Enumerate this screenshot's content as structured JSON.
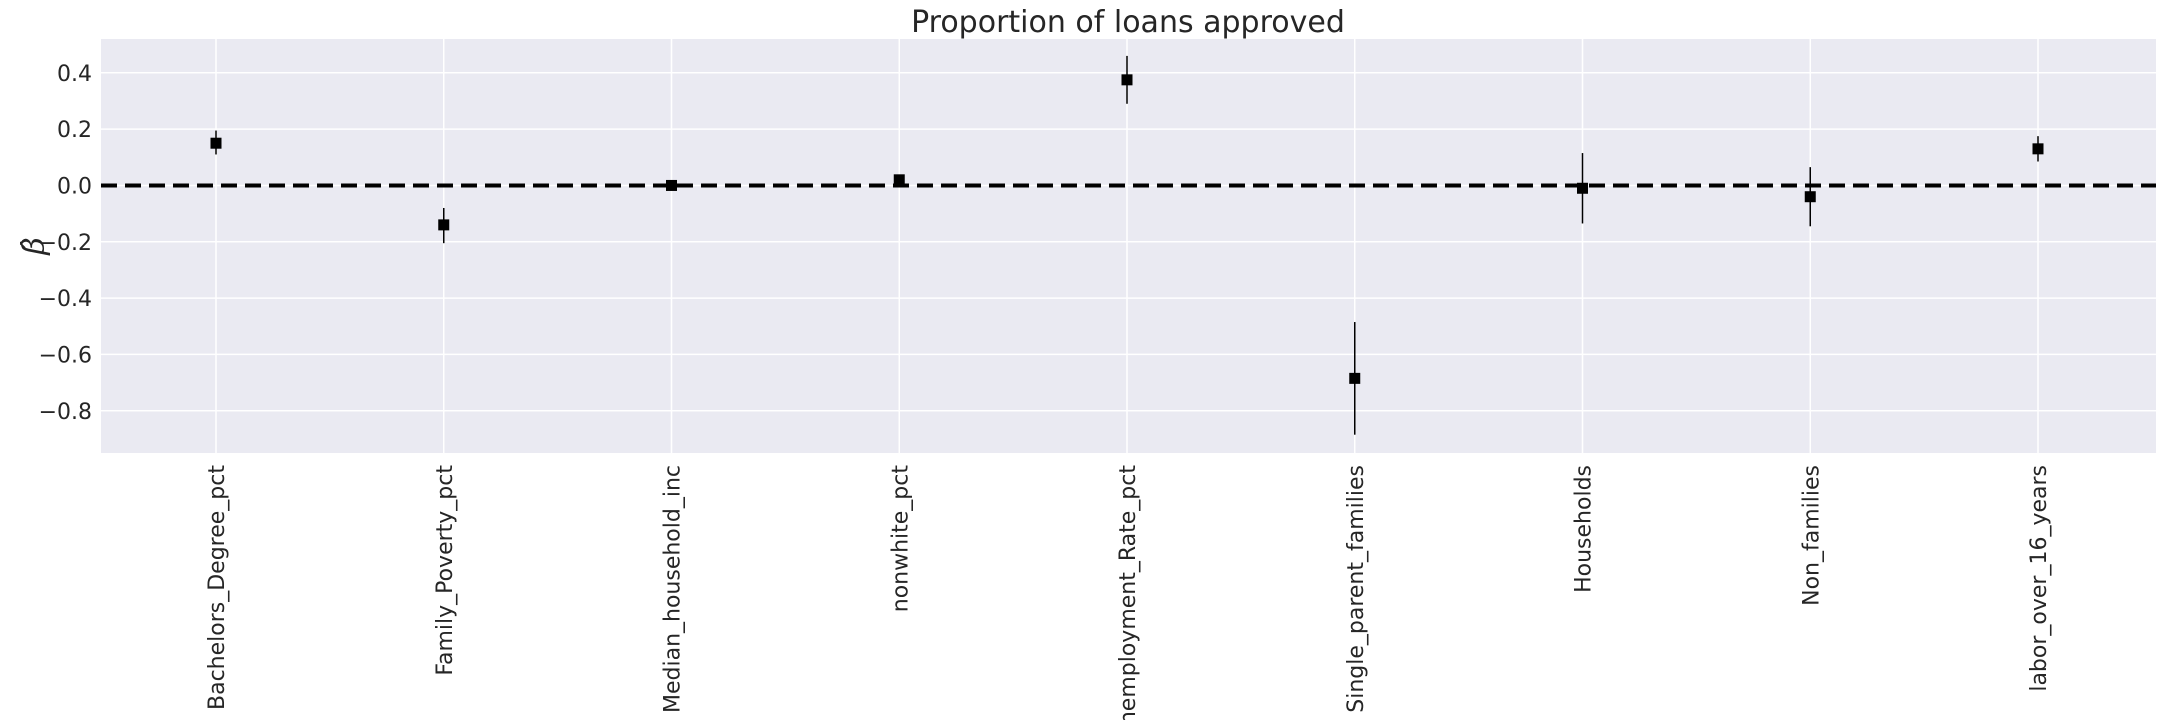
{
  "chart_data": {
    "type": "scatter",
    "title": "Proportion of loans approved",
    "xlabel": "",
    "ylabel": "β̂",
    "categories": [
      "Bachelors_Degree_pct",
      "Family_Poverty_pct",
      "Median_household_inc",
      "nonwhite_pct",
      "Unemployment_Rate_pct",
      "Single_parent_families",
      "Households",
      "Non_families",
      "labor_over_16_years"
    ],
    "series": [
      {
        "values": [
          0.15,
          -0.14,
          0.0,
          0.02,
          0.375,
          -0.685,
          -0.01,
          -0.04,
          0.13
        ],
        "err_low": [
          0.11,
          -0.205,
          -0.005,
          0.005,
          0.29,
          -0.885,
          -0.135,
          -0.145,
          0.085
        ],
        "err_high": [
          0.195,
          -0.08,
          0.005,
          0.035,
          0.46,
          -0.485,
          0.115,
          0.065,
          0.175
        ]
      }
    ],
    "ylim": [
      -0.95,
      0.52
    ],
    "yticks": [
      0.4,
      0.2,
      0.0,
      -0.2,
      -0.4,
      -0.6,
      -0.8
    ],
    "ytick_labels": [
      "0.4",
      "0.2",
      "0.0",
      "−0.2",
      "−0.4",
      "−0.6",
      "−0.8"
    ],
    "reference_line": 0.0,
    "grid": true,
    "colors": {
      "background": "#eaeaf2",
      "grid": "#ffffff",
      "marker": "#000000",
      "reference_line": "#000000"
    }
  }
}
